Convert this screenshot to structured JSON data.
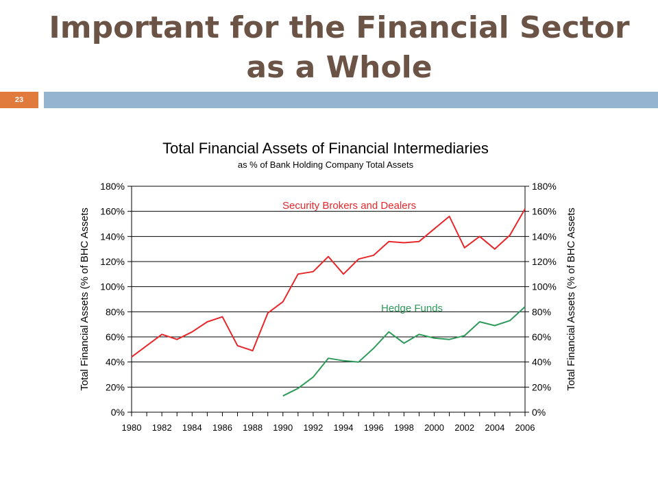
{
  "slide": {
    "title_line1": "Important for the Financial Sector",
    "title_line2": "as a Whole",
    "page_number": "23"
  },
  "chart_data": {
    "type": "line",
    "title": "Total Financial Assets of Financial Intermediaries",
    "subtitle": "as % of Bank Holding Company Total Assets",
    "ylabel": "Total Financial Assets (% of BHC Assets",
    "ylabel_right": "Total Financial Assets (% of BHC Assets",
    "ylim": [
      0,
      180
    ],
    "y_ticks": [
      "0%",
      "20%",
      "40%",
      "60%",
      "80%",
      "100%",
      "120%",
      "140%",
      "160%",
      "180%"
    ],
    "x_ticks": [
      "1980",
      "1982",
      "1984",
      "1986",
      "1988",
      "1990",
      "1992",
      "1994",
      "1996",
      "1998",
      "2000",
      "2002",
      "2004",
      "2006"
    ],
    "xlim": [
      1980,
      2006
    ],
    "grid": "horizontal",
    "series": [
      {
        "name": "Security Brokers and Dealers",
        "color": "#e8262a",
        "x": [
          1980,
          1981,
          1982,
          1983,
          1984,
          1985,
          1986,
          1987,
          1988,
          1989,
          1990,
          1991,
          1992,
          1993,
          1994,
          1995,
          1996,
          1997,
          1998,
          1999,
          2000,
          2001,
          2002,
          2003,
          2004,
          2005,
          2006
        ],
        "y": [
          44,
          53,
          62,
          58,
          64,
          72,
          76,
          53,
          49,
          79,
          88,
          110,
          112,
          124,
          110,
          122,
          125,
          136,
          135,
          136,
          146,
          156,
          131,
          140,
          130,
          141,
          162
        ]
      },
      {
        "name": "Hedge Funds",
        "color": "#2e9a5a",
        "x": [
          1990,
          1991,
          1992,
          1993,
          1994,
          1995,
          1996,
          1997,
          1998,
          1999,
          2000,
          2001,
          2002,
          2003,
          2004,
          2005,
          2006
        ],
        "y": [
          13,
          19,
          28,
          43,
          41,
          40,
          51,
          64,
          55,
          62,
          59,
          58,
          61,
          72,
          69,
          73,
          84
        ]
      }
    ]
  }
}
